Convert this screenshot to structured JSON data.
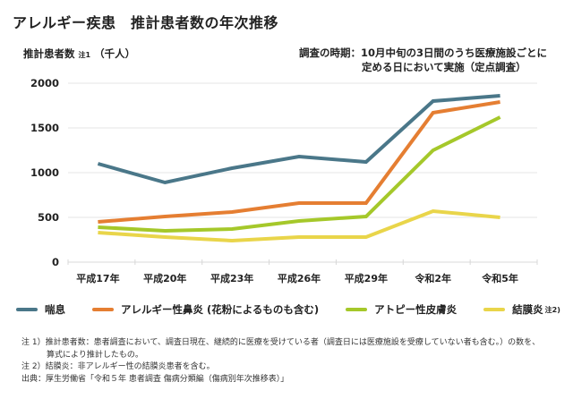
{
  "title": "アレルギー疾患　推計患者数の年次推移",
  "y_axis_label": "推計患者数",
  "y_axis_label_note": "注1",
  "y_axis_unit": "（千人）",
  "survey_period": {
    "line1": "調査の時期：10月中旬の3日間のうち医療施設ごとに",
    "line2": "定める日において実施（定点調査）"
  },
  "legend": [
    {
      "label": "喘息",
      "note": "",
      "color": "#4a7789"
    },
    {
      "label": "アレルギー性鼻炎 (花粉によるものも含む)",
      "note": "",
      "color": "#e57e32"
    },
    {
      "label": "アトピー性皮膚炎",
      "note": "",
      "color": "#a5c82a"
    },
    {
      "label": "結膜炎",
      "note": "注2)",
      "color": "#e9d54a"
    }
  ],
  "notes": {
    "note1_line1": "注 1）推計患者数：患者調査において、調査日現在、継続的に医療を受けている者（調査日には医療施設を受療していない者も含む。）の数を、",
    "note1_line2": "算式により推計したもの。",
    "note2": "注 2）結膜炎：非アレルギー性の結膜炎患者を含む。",
    "source": "出典：厚生労働省「令和５年 患者調査 傷病分類編（傷病別年次推移表）」"
  },
  "chart_data": {
    "type": "line",
    "title": "アレルギー疾患　推計患者数の年次推移",
    "xlabel": "",
    "ylabel": "推計患者数（千人）",
    "categories": [
      "平成17年",
      "平成20年",
      "平成23年",
      "平成26年",
      "平成29年",
      "令和2年",
      "令和5年"
    ],
    "yticks": [
      0,
      500,
      1000,
      1500,
      2000
    ],
    "ylim": [
      0,
      2000
    ],
    "grid": true,
    "legend_position": "bottom",
    "series": [
      {
        "name": "喘息",
        "color": "#4a7789",
        "values": [
          1100,
          890,
          1050,
          1180,
          1120,
          1800,
          1860
        ]
      },
      {
        "name": "アレルギー性鼻炎 (花粉によるものも含む)",
        "color": "#e57e32",
        "values": [
          450,
          510,
          560,
          660,
          660,
          1670,
          1790
        ]
      },
      {
        "name": "アトピー性皮膚炎",
        "color": "#a5c82a",
        "values": [
          390,
          350,
          370,
          460,
          510,
          1250,
          1620
        ]
      },
      {
        "name": "結膜炎",
        "color": "#e9d54a",
        "values": [
          330,
          280,
          240,
          280,
          280,
          570,
          500
        ]
      }
    ]
  }
}
